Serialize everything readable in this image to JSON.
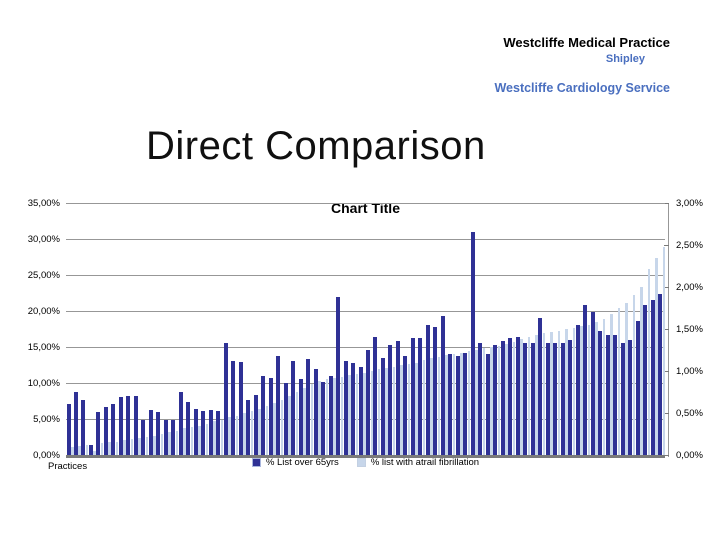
{
  "header": {
    "line1": "Westcliffe Medical Practice",
    "line2": "Shipley",
    "line3": "Westcliffe Cardiology Service",
    "accent_color": "#4a6fbf"
  },
  "slide_title": "Direct Comparison",
  "chart_data": {
    "type": "bar",
    "title": "Chart Title",
    "xlabel": "Practices",
    "grid": true,
    "legend_position": "bottom",
    "left_axis": {
      "ticks": [
        "35,00%",
        "30,00%",
        "25,00%",
        "20,00%",
        "15,00%",
        "10,00%",
        "5,00%",
        "0,00%"
      ],
      "range": [
        0,
        35
      ]
    },
    "right_axis": {
      "ticks": [
        "3,00%",
        "2,50%",
        "2,00%",
        "1,50%",
        "1,00%",
        "0,50%",
        "0,00%"
      ],
      "range": [
        0,
        3
      ]
    },
    "series": [
      {
        "name": "% List over 65yrs",
        "axis": "left",
        "color": "#2f3195",
        "values": [
          7.1,
          8.8,
          7.7,
          1.4,
          6.0,
          6.6,
          7.1,
          8.0,
          8.2,
          8.2,
          4.9,
          6.3,
          6.0,
          4.9,
          4.9,
          8.8,
          7.3,
          6.4,
          6.1,
          6.3,
          6.1,
          15.6,
          13.1,
          12.9,
          7.7,
          8.4,
          11.0,
          10.7,
          13.8,
          10.0,
          13.1,
          10.5,
          13.3,
          12.0,
          10.2,
          11.0,
          22.0,
          13.0,
          12.8,
          12.2,
          14.6,
          16.4,
          13.5,
          15.3,
          15.8,
          13.7,
          16.3,
          16.3,
          18.1,
          17.8,
          19.3,
          14.0,
          13.7,
          14.2,
          31.0,
          15.6,
          14.0,
          15.3,
          15.8,
          16.3,
          16.4,
          15.6,
          15.6,
          19.0,
          15.6,
          15.6,
          15.6,
          16.0,
          18.1,
          20.9,
          19.8,
          17.2,
          16.7,
          16.7,
          15.6,
          16.0,
          18.6,
          20.9,
          21.5,
          22.3
        ]
      },
      {
        "name": "% list with atrail fibrillation",
        "axis": "right",
        "color": "#c7d6ea",
        "values": [
          0.1,
          0.11,
          0.12,
          0.05,
          0.14,
          0.15,
          0.16,
          0.18,
          0.19,
          0.2,
          0.22,
          0.23,
          0.25,
          0.27,
          0.29,
          0.32,
          0.33,
          0.35,
          0.37,
          0.4,
          0.42,
          0.45,
          0.47,
          0.5,
          0.52,
          0.55,
          0.58,
          0.62,
          0.66,
          0.7,
          0.75,
          0.8,
          0.85,
          0.88,
          0.9,
          0.92,
          0.93,
          0.95,
          0.97,
          0.98,
          1.0,
          1.02,
          1.04,
          1.05,
          1.07,
          1.08,
          1.1,
          1.13,
          1.15,
          1.17,
          1.19,
          1.2,
          1.22,
          1.24,
          1.25,
          1.27,
          1.28,
          1.3,
          1.32,
          1.35,
          1.38,
          1.4,
          1.43,
          1.45,
          1.46,
          1.48,
          1.5,
          1.51,
          1.53,
          1.55,
          1.58,
          1.62,
          1.68,
          1.75,
          1.81,
          1.9,
          2.0,
          2.22,
          2.35,
          2.48
        ]
      }
    ]
  }
}
